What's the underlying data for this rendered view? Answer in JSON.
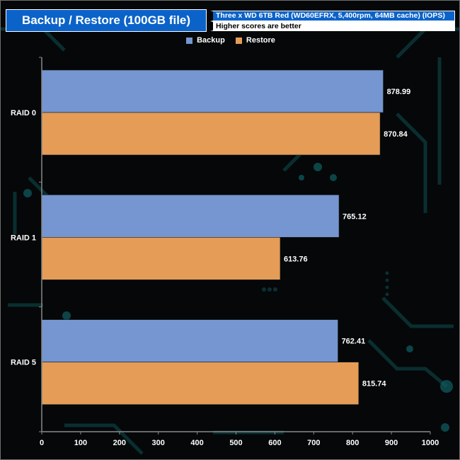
{
  "title": "Backup / Restore (100GB file)",
  "subtitle": "Three x WD 6TB Red (WD60EFRX, 5,400rpm, 64MB cache) (IOPS)",
  "note": "Higher scores are better",
  "colors": {
    "backup": "#7596d0",
    "restore": "#e59c57",
    "title_bg": "#0b63c9"
  },
  "chart_data": {
    "type": "bar",
    "orientation": "horizontal",
    "categories": [
      "RAID 0",
      "RAID 1",
      "RAID 5"
    ],
    "series": [
      {
        "name": "Backup",
        "values": [
          878.99,
          765.12,
          762.41
        ]
      },
      {
        "name": "Restore",
        "values": [
          870.84,
          613.76,
          815.74
        ]
      }
    ],
    "xlim": [
      0,
      1000
    ],
    "xticks": [
      0,
      100,
      200,
      300,
      400,
      500,
      600,
      700,
      800,
      900,
      1000
    ],
    "data_labels": [
      [
        "878.99",
        "870.84"
      ],
      [
        "765.12",
        "613.76"
      ],
      [
        "762.41",
        "815.74"
      ]
    ],
    "legend_position": "top-center",
    "grid": false
  }
}
